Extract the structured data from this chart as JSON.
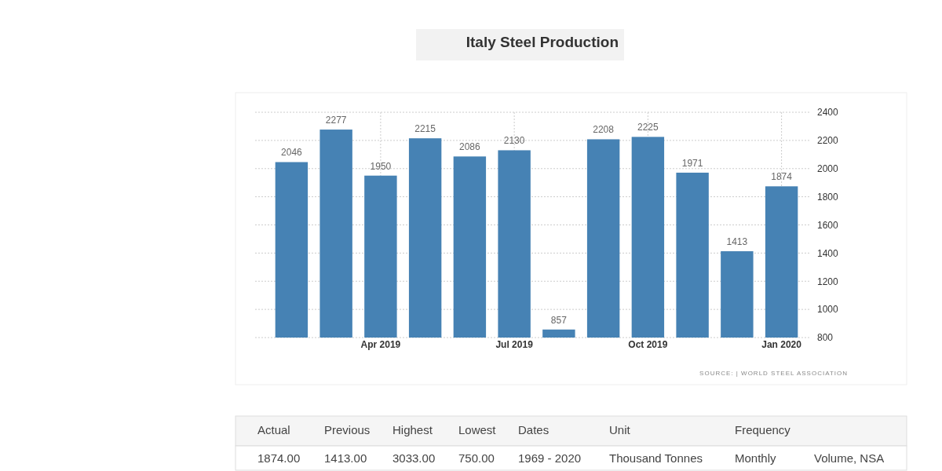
{
  "chart_data": {
    "type": "bar",
    "title": "Italy Steel Production",
    "categories": [
      null,
      null,
      "Apr 2019",
      null,
      null,
      "Jul 2019",
      null,
      null,
      "Oct 2019",
      null,
      null,
      "Jan 2020"
    ],
    "values": [
      2046,
      2277,
      1950,
      2215,
      2086,
      2130,
      857,
      2208,
      2225,
      1971,
      1413,
      1874
    ],
    "color": "#4682b4",
    "data_labels": true,
    "ylim": [
      800,
      2400
    ],
    "yticks": [
      800,
      1000,
      1200,
      1400,
      1600,
      1800,
      2000,
      2200,
      2400
    ],
    "grid": true,
    "annotations": [
      "SOURCE: | WORLD STEEL ASSOCIATION",
      "Actual",
      "Previous",
      "Highest",
      "Lowest",
      "Dates",
      "Unit",
      "Frequency",
      "1874.00",
      "1413.00",
      "3033.00",
      "750.00",
      "1969 - 2020",
      "Thousand Tonnes",
      "Monthly",
      "Volume, NSA"
    ]
  }
}
